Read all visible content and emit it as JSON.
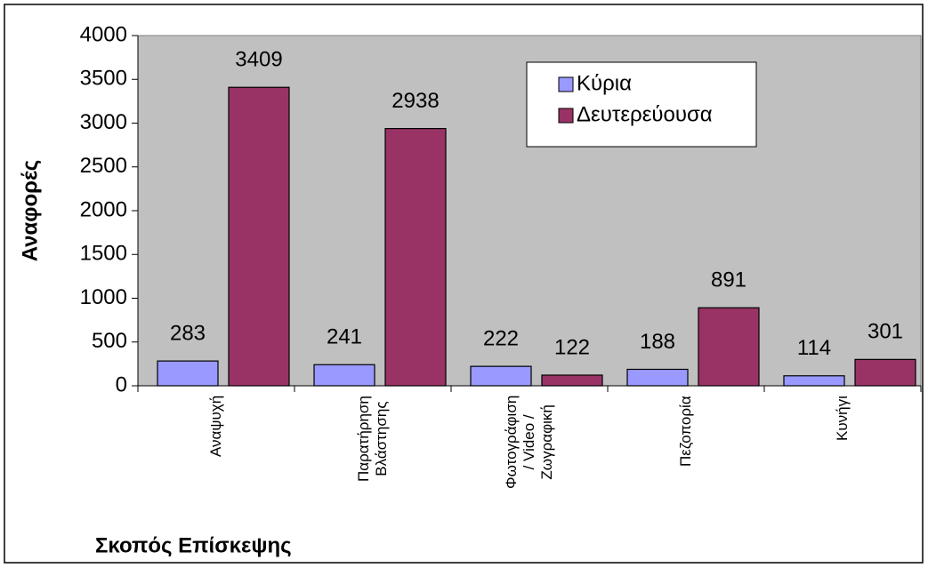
{
  "chart_data": {
    "type": "bar",
    "y_label": "Αναφορές",
    "x_label": "Σκοπός Επίσκεψης",
    "categories": [
      "Αναψυχή",
      "Παρατήρηση\nΒλάστησης",
      "Φωτογράφιση\n/ Video /\nΖωγραφική",
      "Πεζοπορία",
      "Κυνήγι"
    ],
    "series": [
      {
        "name": "Κύρια",
        "color": "#9999ff",
        "values": [
          283,
          241,
          222,
          188,
          114
        ]
      },
      {
        "name": "Δευτερεύουσα",
        "color": "#993366",
        "values": [
          3409,
          2938,
          122,
          891,
          301
        ]
      }
    ],
    "ylim": [
      0,
      4000
    ],
    "yticks": [
      0,
      500,
      1000,
      1500,
      2000,
      2500,
      3000,
      3500,
      4000
    ],
    "legend": "upper right",
    "plot_background": "#c0c0c0"
  }
}
